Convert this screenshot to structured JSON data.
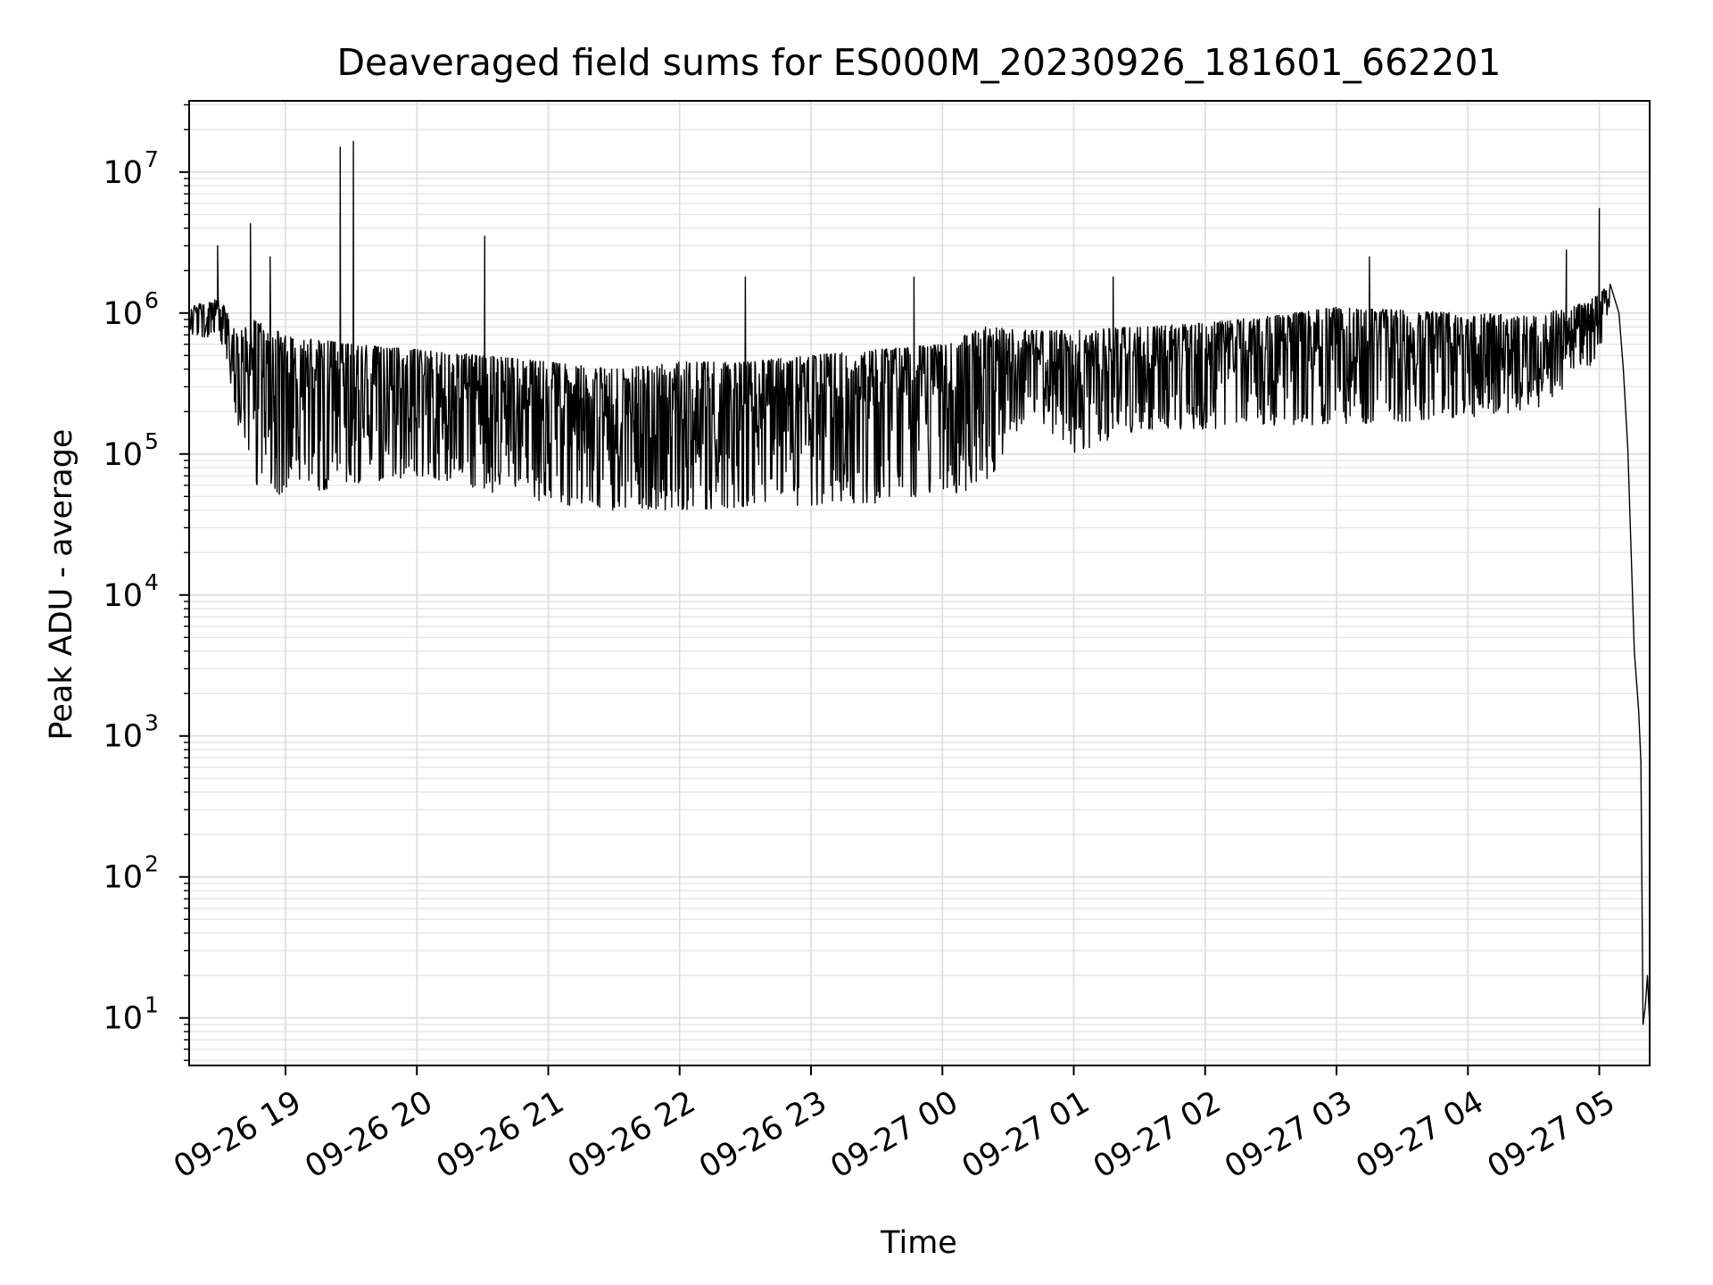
{
  "chart_data": {
    "type": "line",
    "title": "Deaveraged field sums for ES000M_20230926_181601_662201",
    "xlabel": "Time",
    "ylabel": "Peak ADU - average",
    "yscale": "log",
    "ylim": [
      4.6,
      32000000
    ],
    "xlim": [
      "2023-09-26 18:16",
      "2023-09-27 05:23"
    ],
    "grid": true,
    "x_ticks": [
      {
        "value": "2023-09-26 19:00",
        "label": "09-26 19"
      },
      {
        "value": "2023-09-26 20:00",
        "label": "09-26 20"
      },
      {
        "value": "2023-09-26 21:00",
        "label": "09-26 21"
      },
      {
        "value": "2023-09-26 22:00",
        "label": "09-26 22"
      },
      {
        "value": "2023-09-26 23:00",
        "label": "09-26 23"
      },
      {
        "value": "2023-09-27 00:00",
        "label": "09-27 00"
      },
      {
        "value": "2023-09-27 01:00",
        "label": "09-27 01"
      },
      {
        "value": "2023-09-27 02:00",
        "label": "09-27 02"
      },
      {
        "value": "2023-09-27 03:00",
        "label": "09-27 03"
      },
      {
        "value": "2023-09-27 04:00",
        "label": "09-27 04"
      },
      {
        "value": "2023-09-27 05:00",
        "label": "09-27 05"
      }
    ],
    "y_ticks": [
      {
        "value": 10,
        "base": "10",
        "exp": "1"
      },
      {
        "value": 100,
        "base": "10",
        "exp": "2"
      },
      {
        "value": 1000,
        "base": "10",
        "exp": "3"
      },
      {
        "value": 10000,
        "base": "10",
        "exp": "4"
      },
      {
        "value": 100000,
        "base": "10",
        "exp": "5"
      },
      {
        "value": 1000000,
        "base": "10",
        "exp": "6"
      },
      {
        "value": 10000000,
        "base": "10",
        "exp": "7"
      }
    ],
    "series": [
      {
        "color": "#000000",
        "envelope": [
          {
            "t": "2023-09-26 18:16",
            "low": 700000,
            "high": 1100000
          },
          {
            "t": "2023-09-26 18:30",
            "low": 650000,
            "high": 1300000
          },
          {
            "t": "2023-09-26 18:38",
            "low": 150000,
            "high": 700000
          },
          {
            "t": "2023-09-26 18:45",
            "low": 60000,
            "high": 900000
          },
          {
            "t": "2023-09-26 19:00",
            "low": 50000,
            "high": 700000
          },
          {
            "t": "2023-09-26 19:30",
            "low": 60000,
            "high": 600000
          },
          {
            "t": "2023-09-26 20:00",
            "low": 70000,
            "high": 550000
          },
          {
            "t": "2023-09-26 20:30",
            "low": 55000,
            "high": 500000
          },
          {
            "t": "2023-09-26 21:00",
            "low": 45000,
            "high": 450000
          },
          {
            "t": "2023-09-26 21:30",
            "low": 40000,
            "high": 400000
          },
          {
            "t": "2023-09-26 22:00",
            "low": 40000,
            "high": 450000
          },
          {
            "t": "2023-09-26 22:30",
            "low": 42000,
            "high": 450000
          },
          {
            "t": "2023-09-26 23:00",
            "low": 42000,
            "high": 500000
          },
          {
            "t": "2023-09-26 23:30",
            "low": 45000,
            "high": 550000
          },
          {
            "t": "2023-09-27 00:00",
            "low": 50000,
            "high": 600000
          },
          {
            "t": "2023-09-27 00:20",
            "low": 60000,
            "high": 800000
          },
          {
            "t": "2023-09-27 00:40",
            "low": 200000,
            "high": 750000
          },
          {
            "t": "2023-09-27 01:00",
            "low": 100000,
            "high": 750000
          },
          {
            "t": "2023-09-27 01:30",
            "low": 150000,
            "high": 800000
          },
          {
            "t": "2023-09-27 02:00",
            "low": 150000,
            "high": 850000
          },
          {
            "t": "2023-09-27 02:30",
            "low": 160000,
            "high": 950000
          },
          {
            "t": "2023-09-27 03:00",
            "low": 160000,
            "high": 1100000
          },
          {
            "t": "2023-09-27 03:30",
            "low": 170000,
            "high": 1050000
          },
          {
            "t": "2023-09-27 04:00",
            "low": 180000,
            "high": 1000000
          },
          {
            "t": "2023-09-27 04:30",
            "low": 200000,
            "high": 950000
          },
          {
            "t": "2023-09-27 04:55",
            "low": 400000,
            "high": 1200000
          },
          {
            "t": "2023-09-27 05:05",
            "low": 700000,
            "high": 1600000
          }
        ],
        "key_points": [
          {
            "t": "2023-09-27 05:09",
            "y": 1000000
          },
          {
            "t": "2023-09-27 05:11",
            "y": 400000
          },
          {
            "t": "2023-09-27 05:13",
            "y": 110000
          },
          {
            "t": "2023-09-27 05:15",
            "y": 12000
          },
          {
            "t": "2023-09-27 05:16",
            "y": 4000
          },
          {
            "t": "2023-09-27 05:18",
            "y": 1500
          },
          {
            "t": "2023-09-27 05:19",
            "y": 650
          },
          {
            "t": "2023-09-27 05:20",
            "y": 9
          },
          {
            "t": "2023-09-27 05:21",
            "y": 12
          },
          {
            "t": "2023-09-27 05:22",
            "y": 20
          },
          {
            "t": "2023-09-27 05:23",
            "y": 9
          }
        ],
        "spikes": [
          {
            "t": "2023-09-26 18:29",
            "y": 3000000
          },
          {
            "t": "2023-09-26 18:44",
            "y": 4300000
          },
          {
            "t": "2023-09-26 18:53",
            "y": 2500000
          },
          {
            "t": "2023-09-26 19:25",
            "y": 15000000
          },
          {
            "t": "2023-09-26 19:31",
            "y": 16500000
          },
          {
            "t": "2023-09-26 20:31",
            "y": 3500000
          },
          {
            "t": "2023-09-26 22:30",
            "y": 1800000
          },
          {
            "t": "2023-09-26 23:47",
            "y": 1800000
          },
          {
            "t": "2023-09-27 01:18",
            "y": 1800000
          },
          {
            "t": "2023-09-27 03:15",
            "y": 2500000
          },
          {
            "t": "2023-09-27 04:45",
            "y": 2800000
          },
          {
            "t": "2023-09-27 05:00",
            "y": 5500000
          }
        ]
      }
    ]
  }
}
